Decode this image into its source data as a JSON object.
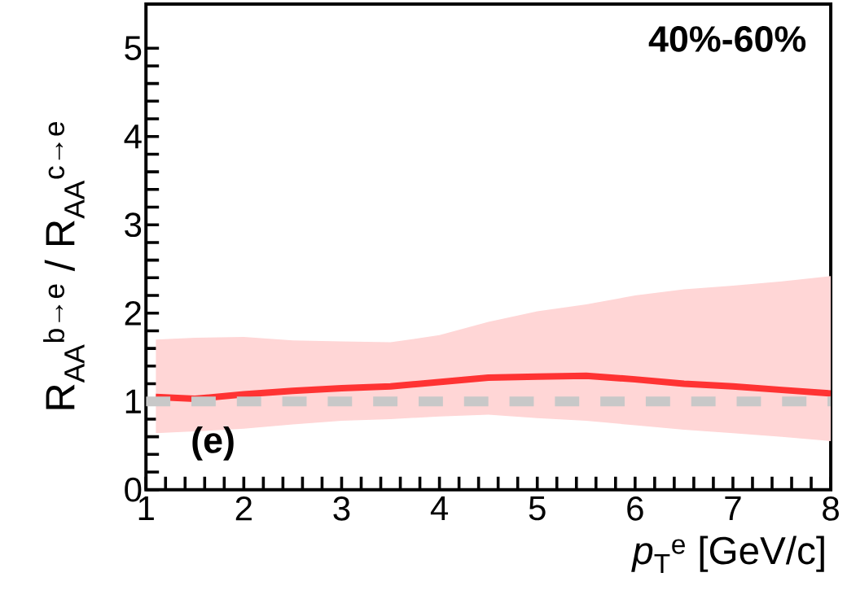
{
  "chart_data": {
    "type": "line",
    "xlabel": "*p*$_{T}$$^{e}$ [GeV/c]",
    "ylabel": "R$_{AA}$$^{b→e}$ / R$_{AA}$$^{c→e}$",
    "annotations": [
      "40%-60%",
      "(e)"
    ],
    "xlim": [
      1,
      8
    ],
    "xticks": [
      1,
      2,
      3,
      4,
      5,
      6,
      7,
      8
    ],
    "ylim": [
      0,
      5.5
    ],
    "yticks": [
      0,
      1,
      2,
      3,
      4,
      5
    ],
    "x": [
      1.1,
      1.5,
      2.0,
      2.5,
      3.0,
      3.5,
      4.0,
      4.5,
      5.0,
      5.5,
      6.0,
      6.5,
      7.0,
      7.5,
      8.0
    ],
    "series": [
      {
        "color": "#ff3333",
        "line_style": "solid",
        "values": [
          1.05,
          1.03,
          1.08,
          1.12,
          1.15,
          1.17,
          1.22,
          1.27,
          1.28,
          1.29,
          1.25,
          1.2,
          1.17,
          1.13,
          1.09
        ],
        "upper": [
          1.7,
          1.72,
          1.73,
          1.69,
          1.68,
          1.67,
          1.75,
          1.9,
          2.02,
          2.1,
          2.2,
          2.27,
          2.31,
          2.36,
          2.42
        ],
        "lower": [
          0.64,
          0.66,
          0.69,
          0.74,
          0.78,
          0.8,
          0.83,
          0.85,
          0.81,
          0.78,
          0.73,
          0.68,
          0.64,
          0.6,
          0.55
        ]
      }
    ],
    "ref_lines": [
      {
        "axis": "y",
        "value": 1,
        "color": "#c8c8c8",
        "line_style": "dashed"
      }
    ]
  }
}
